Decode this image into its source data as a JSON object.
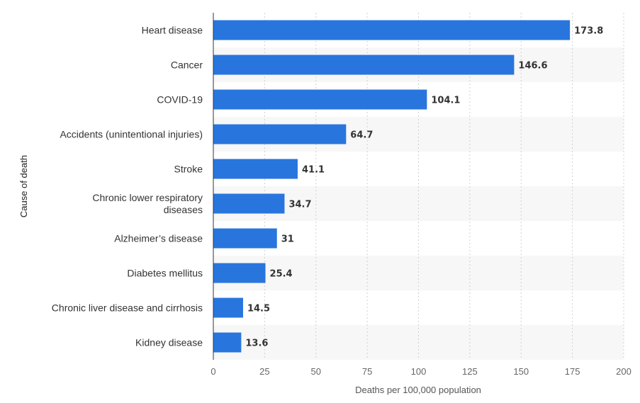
{
  "chart_data": {
    "type": "bar",
    "orientation": "horizontal",
    "categories": [
      [
        "Heart disease"
      ],
      [
        "Cancer"
      ],
      [
        "COVID-19"
      ],
      [
        "Accidents (unintentional injuries)"
      ],
      [
        "Stroke"
      ],
      [
        "Chronic lower respiratory",
        "diseases"
      ],
      [
        "Alzheimer’s disease"
      ],
      [
        "Diabetes mellitus"
      ],
      [
        "Chronic liver disease and cirrhosis"
      ],
      [
        "Kidney disease"
      ]
    ],
    "values": [
      173.8,
      146.6,
      104.1,
      64.7,
      41.1,
      34.7,
      31,
      25.4,
      14.5,
      13.6
    ],
    "value_labels": [
      "173.8",
      "146.6",
      "104.1",
      "64.7",
      "41.1",
      "34.7",
      "31",
      "25.4",
      "14.5",
      "13.6"
    ],
    "xlabel": "Deaths per 100,000 population",
    "ylabel": "Cause of death",
    "xlim": [
      0,
      200
    ],
    "xticks": [
      0,
      25,
      50,
      75,
      100,
      125,
      150,
      175,
      200
    ],
    "grid": "vertical dashed",
    "alternating_row_shading": true,
    "colors": {
      "bar": "#2876dd",
      "row_shade": "#f7f7f7",
      "grid": "#d0d0d0",
      "axis": "#333333"
    }
  }
}
